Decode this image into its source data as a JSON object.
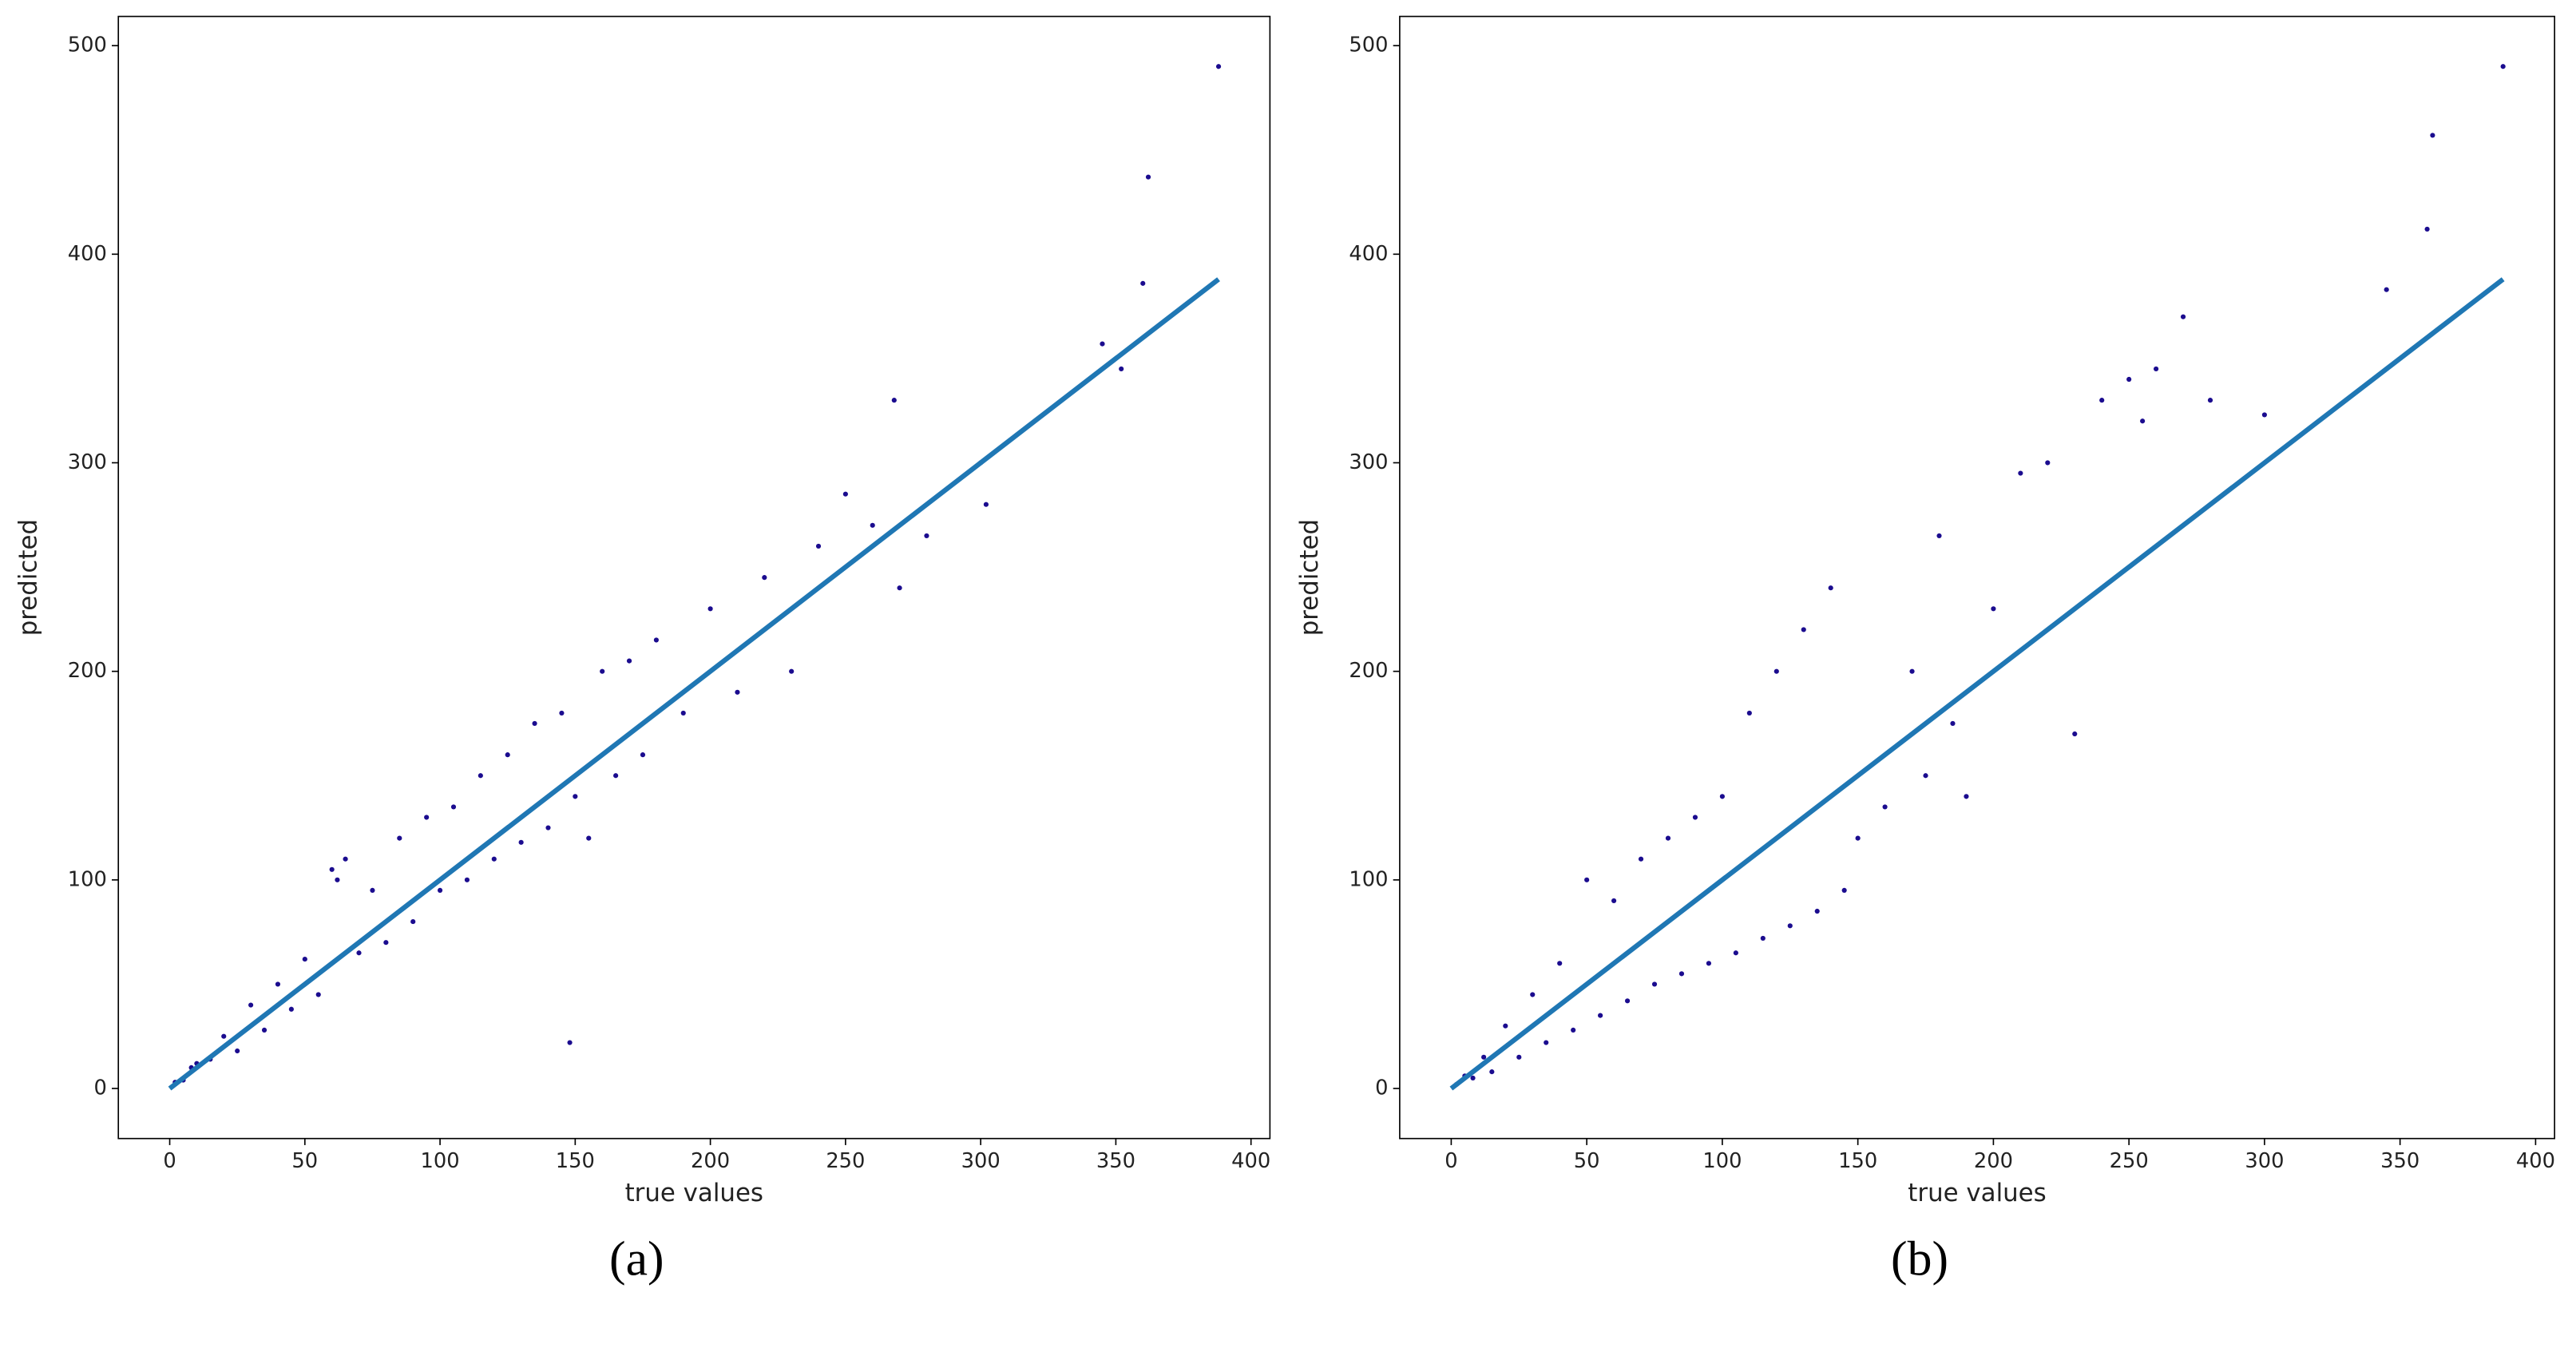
{
  "chart_data": [
    {
      "type": "scatter",
      "caption": "(a)",
      "xlabel": "true values",
      "ylabel": "predicted",
      "xlim": [
        -19,
        407
      ],
      "ylim": [
        -24,
        514
      ],
      "xticks": [
        0,
        50,
        100,
        150,
        200,
        250,
        300,
        350,
        400
      ],
      "yticks": [
        0,
        100,
        200,
        300,
        400,
        500
      ],
      "points": {
        "color": "#1b0c8f",
        "x": [
          2,
          5,
          8,
          10,
          15,
          20,
          25,
          30,
          35,
          40,
          45,
          50,
          55,
          60,
          62,
          65,
          70,
          75,
          80,
          85,
          90,
          95,
          100,
          105,
          110,
          115,
          120,
          125,
          130,
          135,
          140,
          145,
          150,
          148,
          155,
          160,
          165,
          170,
          175,
          180,
          190,
          200,
          210,
          220,
          230,
          240,
          250,
          260,
          268,
          270,
          280,
          300,
          302,
          345,
          352,
          360,
          362,
          388
        ],
        "y": [
          3,
          4,
          10,
          12,
          14,
          25,
          18,
          40,
          28,
          50,
          38,
          62,
          45,
          105,
          100,
          110,
          65,
          95,
          70,
          120,
          80,
          130,
          95,
          135,
          100,
          150,
          110,
          160,
          118,
          175,
          125,
          180,
          140,
          22,
          120,
          200,
          150,
          205,
          160,
          215,
          180,
          230,
          190,
          245,
          200,
          260,
          285,
          270,
          330,
          240,
          265,
          300,
          280,
          357,
          345,
          386,
          437,
          490
        ]
      },
      "fit_line": {
        "color": "#1f77b4",
        "x": [
          0,
          388
        ],
        "y": [
          0,
          388
        ]
      }
    },
    {
      "type": "scatter",
      "caption": "(b)",
      "xlabel": "true values",
      "ylabel": "predicted",
      "xlim": [
        -19,
        407
      ],
      "ylim": [
        -24,
        514
      ],
      "xticks": [
        0,
        50,
        100,
        150,
        200,
        250,
        300,
        350,
        400
      ],
      "yticks": [
        0,
        100,
        200,
        300,
        400,
        500
      ],
      "points": {
        "color": "#1b0c8f",
        "x": [
          2,
          5,
          8,
          12,
          15,
          20,
          25,
          30,
          35,
          40,
          45,
          50,
          55,
          60,
          65,
          70,
          75,
          80,
          85,
          90,
          95,
          100,
          105,
          110,
          115,
          120,
          125,
          130,
          135,
          140,
          145,
          150,
          160,
          170,
          175,
          180,
          185,
          190,
          200,
          210,
          220,
          230,
          240,
          250,
          255,
          260,
          270,
          280,
          300,
          345,
          360,
          362,
          388
        ],
        "y": [
          2,
          6,
          5,
          15,
          8,
          30,
          15,
          45,
          22,
          60,
          28,
          100,
          35,
          90,
          42,
          110,
          50,
          120,
          55,
          130,
          60,
          140,
          65,
          180,
          72,
          200,
          78,
          220,
          85,
          240,
          95,
          120,
          135,
          200,
          150,
          265,
          175,
          140,
          230,
          295,
          300,
          170,
          330,
          340,
          320,
          345,
          370,
          330,
          323,
          383,
          412,
          457,
          490
        ]
      },
      "fit_line": {
        "color": "#1f77b4",
        "x": [
          0,
          388
        ],
        "y": [
          0,
          388
        ]
      }
    }
  ]
}
